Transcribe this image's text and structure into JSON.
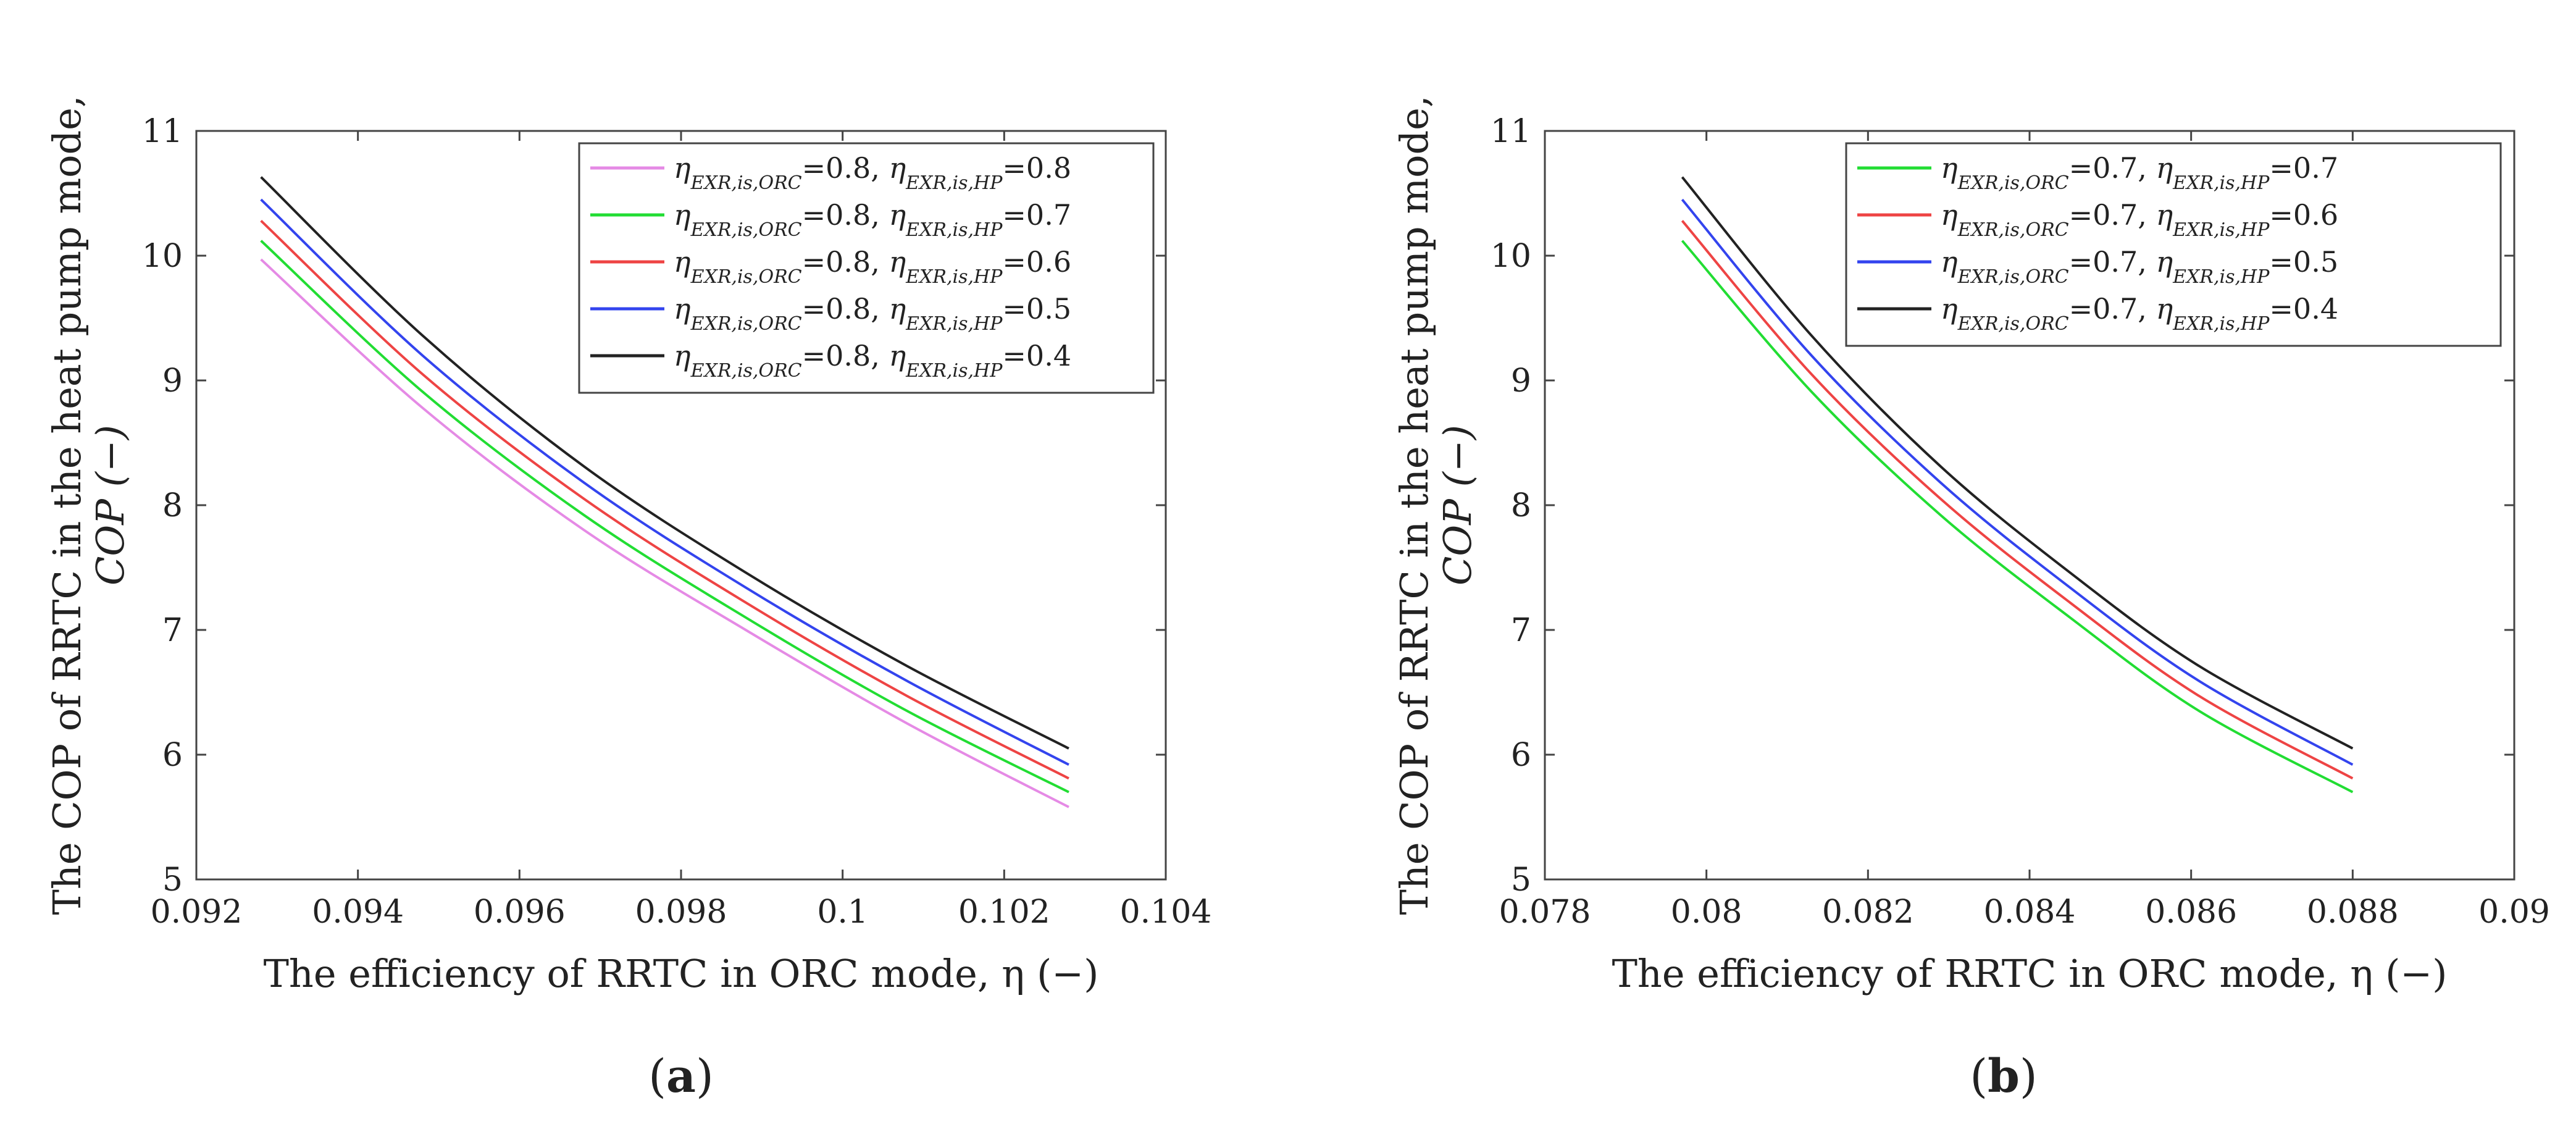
{
  "figure": {
    "panels": [
      {
        "tag": "(a)",
        "tag_letter": "a",
        "ylabel_line1": "The COP of RRTC in the heat pump mode,",
        "ylabel_line2": "COP (−)",
        "xlabel": "The efficiency of RRTC in ORC mode, η (−)"
      },
      {
        "tag": "(b)",
        "tag_letter": "b",
        "ylabel_line1": "The COP of RRTC in the heat pump mode,",
        "ylabel_line2": "COP (−)",
        "xlabel": "The efficiency of RRTC in ORC mode, η (−)"
      }
    ]
  },
  "chart_data": [
    {
      "type": "line",
      "panel": "(a)",
      "xlabel": "The efficiency of RRTC in ORC mode, η (−)",
      "ylabel": "The COP of RRTC in the heat pump mode, COP (−)",
      "xlim": [
        0.092,
        0.104
      ],
      "ylim": [
        5,
        11
      ],
      "xticks": [
        0.092,
        0.094,
        0.096,
        0.098,
        0.1,
        0.102,
        0.104
      ],
      "xtick_labels": [
        "0.092",
        "0.094",
        "0.096",
        "0.098",
        "0.1",
        "0.102",
        "0.104"
      ],
      "yticks": [
        5,
        6,
        7,
        8,
        9,
        10,
        11
      ],
      "ytick_labels": [
        "5",
        "6",
        "7",
        "8",
        "9",
        "10",
        "11"
      ],
      "legend_position": "top-right",
      "series": [
        {
          "name": "ηEXR,is,ORC=0.8, ηEXR,is,HP=0.8",
          "eta_orc": "0.8",
          "eta_hp": "0.8",
          "color": "#e58ae5",
          "x": [
            0.0928,
            0.0948,
            0.0968,
            0.0988,
            0.1008,
            0.1028
          ],
          "y": [
            9.97,
            8.78,
            7.8,
            7.0,
            6.25,
            5.58
          ]
        },
        {
          "name": "ηEXR,is,ORC=0.8, ηEXR,is,HP=0.7",
          "eta_orc": "0.8",
          "eta_hp": "0.7",
          "color": "#22dd33",
          "x": [
            0.0928,
            0.0948,
            0.0968,
            0.0988,
            0.1008,
            0.1028
          ],
          "y": [
            10.12,
            8.91,
            7.92,
            7.1,
            6.35,
            5.7
          ]
        },
        {
          "name": "ηEXR,is,ORC=0.8, ηEXR,is,HP=0.6",
          "eta_orc": "0.8",
          "eta_hp": "0.6",
          "color": "#ee4444",
          "x": [
            0.0928,
            0.0948,
            0.0968,
            0.0988,
            0.1008,
            0.1028
          ],
          "y": [
            10.28,
            9.05,
            8.05,
            7.22,
            6.47,
            5.81
          ]
        },
        {
          "name": "ηEXR,is,ORC=0.8, ηEXR,is,HP=0.5",
          "eta_orc": "0.8",
          "eta_hp": "0.5",
          "color": "#3344ee",
          "x": [
            0.0928,
            0.0948,
            0.0968,
            0.0988,
            0.1008,
            0.1028
          ],
          "y": [
            10.45,
            9.2,
            8.18,
            7.34,
            6.59,
            5.92
          ]
        },
        {
          "name": "ηEXR,is,ORC=0.8, ηEXR,is,HP=0.4",
          "eta_orc": "0.8",
          "eta_hp": "0.4",
          "color": "#222222",
          "x": [
            0.0928,
            0.0948,
            0.0968,
            0.0988,
            0.1008,
            0.1028
          ],
          "y": [
            10.63,
            9.36,
            8.31,
            7.46,
            6.71,
            6.05
          ]
        }
      ]
    },
    {
      "type": "line",
      "panel": "(b)",
      "xlabel": "The efficiency of RRTC in ORC mode, η (−)",
      "ylabel": "The COP of RRTC in the heat pump mode, COP (−)",
      "xlim": [
        0.078,
        0.09
      ],
      "ylim": [
        5,
        11
      ],
      "xticks": [
        0.078,
        0.08,
        0.082,
        0.084,
        0.086,
        0.088,
        0.09
      ],
      "xtick_labels": [
        "0.078",
        "0.08",
        "0.082",
        "0.084",
        "0.086",
        "0.088",
        "0.09"
      ],
      "yticks": [
        5,
        6,
        7,
        8,
        9,
        10,
        11
      ],
      "ytick_labels": [
        "5",
        "6",
        "7",
        "8",
        "9",
        "10",
        "11"
      ],
      "legend_position": "top-right",
      "series": [
        {
          "name": "ηEXR,is,ORC=0.7, ηEXR,is,HP=0.7",
          "eta_orc": "0.7",
          "eta_hp": "0.7",
          "color": "#22dd33",
          "x": [
            0.0797,
            0.0813,
            0.0829,
            0.0845,
            0.0861,
            0.088
          ],
          "y": [
            10.12,
            8.91,
            7.92,
            7.1,
            6.35,
            5.7
          ]
        },
        {
          "name": "ηEXR,is,ORC=0.7, ηEXR,is,HP=0.6",
          "eta_orc": "0.7",
          "eta_hp": "0.6",
          "color": "#ee4444",
          "x": [
            0.0797,
            0.0813,
            0.0829,
            0.0845,
            0.0861,
            0.088
          ],
          "y": [
            10.28,
            9.05,
            8.05,
            7.22,
            6.47,
            5.81
          ]
        },
        {
          "name": "ηEXR,is,ORC=0.7, ηEXR,is,HP=0.5",
          "eta_orc": "0.7",
          "eta_hp": "0.5",
          "color": "#3344ee",
          "x": [
            0.0797,
            0.0813,
            0.0829,
            0.0845,
            0.0861,
            0.088
          ],
          "y": [
            10.45,
            9.2,
            8.18,
            7.34,
            6.59,
            5.92
          ]
        },
        {
          "name": "ηEXR,is,ORC=0.7, ηEXR,is,HP=0.4",
          "eta_orc": "0.7",
          "eta_hp": "0.4",
          "color": "#222222",
          "x": [
            0.0797,
            0.0813,
            0.0829,
            0.0845,
            0.0861,
            0.088
          ],
          "y": [
            10.63,
            9.36,
            8.31,
            7.46,
            6.71,
            6.05
          ]
        }
      ]
    }
  ]
}
